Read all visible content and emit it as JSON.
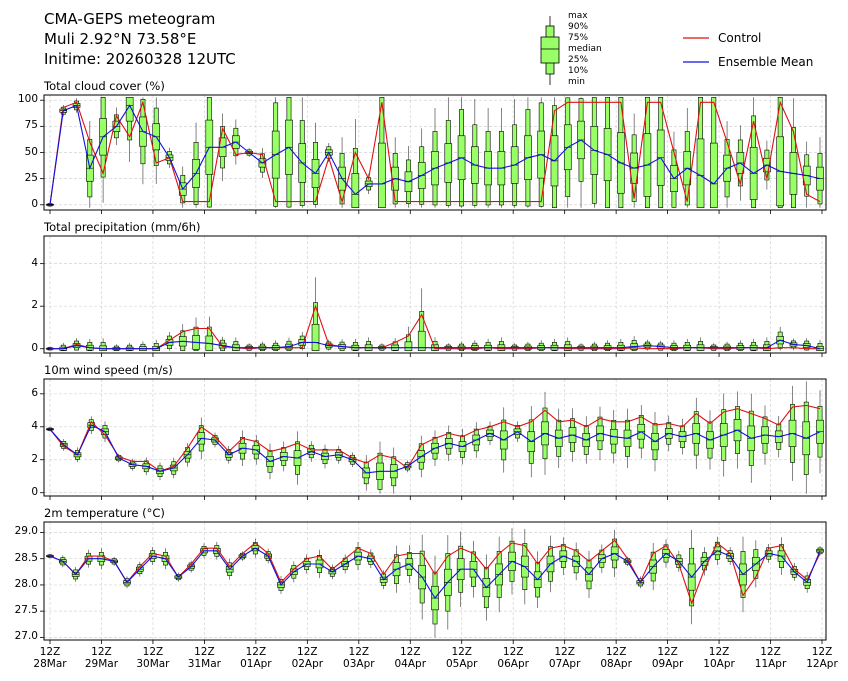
{
  "header": {
    "title": "CMA-GEPS meteogram",
    "location": "Muli 2.92°N 73.58°E",
    "initime": "Initime: 20260328 12UTC"
  },
  "legend": {
    "box_labels": [
      "max",
      "90%",
      "75%",
      "median",
      "25%",
      "10%",
      "min"
    ],
    "control": "Control",
    "ensemble_mean": "Ensemble Mean"
  },
  "colors": {
    "box_fill": "#99ff66",
    "control": "#dd1111",
    "mean": "#1111dd"
  },
  "chart_data": [
    {
      "type": "box",
      "title": "Total cloud cover (%)",
      "ylim": [
        -5,
        105
      ],
      "yticks": [
        "0",
        "25",
        "50",
        "75",
        "100"
      ],
      "control": [
        0,
        93,
        98,
        60,
        30,
        85,
        65,
        98,
        40,
        45,
        3,
        3,
        3,
        73,
        48,
        50,
        48,
        3,
        3,
        3,
        3,
        45,
        3,
        50,
        25,
        98,
        3,
        3,
        3,
        3,
        3,
        3,
        3,
        3,
        3,
        3,
        3,
        3,
        90,
        98,
        98,
        98,
        98,
        98,
        6,
        98,
        98,
        50,
        3,
        98,
        98,
        60,
        20,
        80,
        25,
        98,
        70,
        10,
        3
      ],
      "mean": [
        0,
        90,
        95,
        35,
        65,
        75,
        95,
        70,
        65,
        45,
        15,
        30,
        55,
        55,
        60,
        50,
        40,
        48,
        55,
        40,
        30,
        50,
        25,
        10,
        20,
        20,
        25,
        22,
        28,
        35,
        40,
        45,
        38,
        35,
        35,
        38,
        45,
        48,
        42,
        55,
        62,
        52,
        48,
        40,
        35,
        38,
        45,
        25,
        35,
        28,
        20,
        35,
        40,
        30,
        38,
        32,
        30,
        28,
        25
      ]
    },
    {
      "type": "box",
      "title": "Total precipitation (mm/6h)",
      "ylim": [
        -0.2,
        5.3
      ],
      "yticks": [
        "0",
        "2",
        "4"
      ],
      "control": [
        0,
        0,
        0.2,
        0.05,
        0,
        0,
        0,
        0,
        0,
        0.4,
        0.8,
        0.95,
        0.95,
        0.1,
        0.05,
        0,
        0.05,
        0.05,
        0.05,
        0.05,
        2,
        0.2,
        0.1,
        0.05,
        0.05,
        0.05,
        0.3,
        0.6,
        1.6,
        0,
        0,
        0,
        0,
        0.05,
        0,
        0,
        0,
        0.05,
        0.05,
        0,
        0,
        0,
        0,
        0,
        0.05,
        0,
        0,
        0,
        0.05,
        0.05,
        0,
        0,
        0.05,
        0.05,
        0,
        0.05,
        0.05,
        0,
        0
      ],
      "mean": [
        0,
        0,
        0.15,
        0.05,
        0,
        0,
        0,
        0,
        0,
        0.3,
        0.35,
        0.3,
        0.25,
        0.15,
        0.05,
        0.05,
        0.05,
        0.05,
        0.1,
        0.3,
        0.3,
        0.15,
        0.1,
        0.05,
        0.05,
        0.05,
        0.05,
        0.05,
        0.05,
        0.05,
        0.05,
        0.05,
        0.05,
        0.05,
        0.05,
        0.05,
        0.05,
        0.05,
        0.05,
        0.05,
        0.05,
        0.05,
        0.05,
        0.05,
        0.1,
        0.15,
        0.1,
        0.05,
        0.05,
        0.05,
        0.05,
        0.05,
        0.05,
        0.05,
        0.05,
        0.4,
        0.2,
        0.15,
        0
      ]
    },
    {
      "type": "box",
      "title": "10m wind speed (m/s)",
      "ylim": [
        -0.2,
        6.9
      ],
      "yticks": [
        "0",
        "2",
        "4",
        "6"
      ],
      "control": [
        3.85,
        2.8,
        2.3,
        4.3,
        3.5,
        2.2,
        1.9,
        1.9,
        1.3,
        1.6,
        2.7,
        4.0,
        3.4,
        2.5,
        3.3,
        3.1,
        2.5,
        2.7,
        3.0,
        2.6,
        2.6,
        2.6,
        2.1,
        1.8,
        2.3,
        2.1,
        1.5,
        2.9,
        3.3,
        3.6,
        3.4,
        3.8,
        4.0,
        4.3,
        4.0,
        4.3,
        5.0,
        4.3,
        4.4,
        4.0,
        4.5,
        4.3,
        4.3,
        4.6,
        4.1,
        4.2,
        4.0,
        4.8,
        4.2,
        4.9,
        5.1,
        4.8,
        4.5,
        4.1,
        5.2,
        5.3,
        5.1
      ],
      "mean": [
        3.85,
        2.9,
        2.3,
        4.1,
        3.7,
        2.1,
        1.7,
        1.6,
        1.3,
        1.5,
        2.3,
        3.3,
        3.2,
        2.3,
        2.7,
        2.6,
        1.9,
        2.2,
        2.1,
        2.5,
        2.2,
        2.3,
        2.0,
        1.2,
        1.3,
        1.3,
        1.6,
        2.2,
        2.7,
        3.0,
        2.8,
        3.2,
        3.6,
        3.2,
        3.7,
        3.1,
        3.6,
        3.3,
        3.5,
        3.2,
        3.6,
        3.4,
        3.3,
        3.7,
        3.1,
        3.6,
        3.4,
        3.6,
        3.2,
        3.5,
        3.8,
        3.3,
        3.5,
        3.4,
        3.6,
        3.3,
        3.7
      ]
    },
    {
      "type": "box",
      "title": "2m temperature (°C)",
      "ylim": [
        26.95,
        29.2
      ],
      "yticks": [
        "27.0",
        "27.5",
        "28.0",
        "28.5",
        "29.0"
      ],
      "control": [
        28.55,
        28.45,
        28.2,
        28.55,
        28.55,
        28.45,
        28.05,
        28.35,
        28.6,
        28.55,
        28.15,
        28.4,
        28.7,
        28.7,
        28.35,
        28.6,
        28.8,
        28.6,
        28.05,
        28.3,
        28.5,
        28.55,
        28.3,
        28.5,
        28.7,
        28.6,
        28.2,
        28.55,
        28.6,
        28.6,
        28.2,
        28.55,
        28.7,
        28.6,
        28.3,
        28.6,
        28.8,
        28.75,
        28.4,
        28.7,
        28.75,
        28.65,
        28.45,
        28.65,
        28.85,
        28.5,
        28.05,
        28.6,
        28.75,
        28.4,
        27.65,
        28.3,
        28.8,
        28.6,
        27.8,
        28.15,
        28.7,
        28.75,
        28.3,
        28.1,
        28.6
      ],
      "mean": [
        28.55,
        28.45,
        28.2,
        28.5,
        28.5,
        28.45,
        28.05,
        28.3,
        28.55,
        28.5,
        28.15,
        28.35,
        28.65,
        28.65,
        28.3,
        28.55,
        28.7,
        28.55,
        28.0,
        28.25,
        28.4,
        28.4,
        28.25,
        28.4,
        28.55,
        28.5,
        28.1,
        28.3,
        28.4,
        28.15,
        27.75,
        28.05,
        28.3,
        28.3,
        27.95,
        28.2,
        28.45,
        28.35,
        28.1,
        28.4,
        28.55,
        28.45,
        28.2,
        28.5,
        28.6,
        28.45,
        28.05,
        28.35,
        28.6,
        28.45,
        28.15,
        28.45,
        28.65,
        28.55,
        28.2,
        28.4,
        28.6,
        28.55,
        28.25,
        28.05,
        28.65
      ]
    }
  ],
  "x_axis": {
    "ticks": [
      {
        "hour": "12Z",
        "date": "28Mar"
      },
      {
        "hour": "12Z",
        "date": "29Mar"
      },
      {
        "hour": "12Z",
        "date": "30Mar"
      },
      {
        "hour": "12Z",
        "date": "31Mar"
      },
      {
        "hour": "12Z",
        "date": "01Apr"
      },
      {
        "hour": "12Z",
        "date": "02Apr"
      },
      {
        "hour": "12Z",
        "date": "03Apr"
      },
      {
        "hour": "12Z",
        "date": "04Apr"
      },
      {
        "hour": "12Z",
        "date": "05Apr"
      },
      {
        "hour": "12Z",
        "date": "06Apr"
      },
      {
        "hour": "12Z",
        "date": "07Apr"
      },
      {
        "hour": "12Z",
        "date": "08Apr"
      },
      {
        "hour": "12Z",
        "date": "09Apr"
      },
      {
        "hour": "12Z",
        "date": "10Apr"
      },
      {
        "hour": "12Z",
        "date": "11Apr"
      },
      {
        "hour": "12Z",
        "date": "12Apr"
      }
    ]
  }
}
